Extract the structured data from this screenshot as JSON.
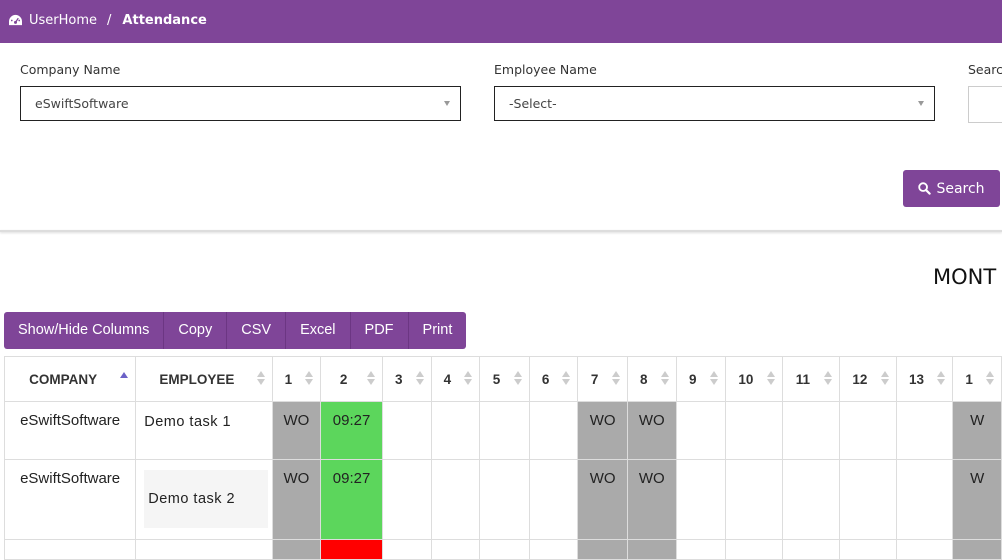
{
  "breadcrumb": {
    "home": "UserHome",
    "separator": "/",
    "current": "Attendance"
  },
  "filters": {
    "company_label": "Company Name",
    "company_value": "eSwiftSoftware",
    "employee_label": "Employee Name",
    "employee_value": "-Select-",
    "search_label": "Searc"
  },
  "search_button": "Search",
  "month_title": "MONT",
  "toolbar": [
    "Show/Hide Columns",
    "Copy",
    "CSV",
    "Excel",
    "PDF",
    "Print"
  ],
  "columns": [
    "COMPANY",
    "EMPLOYEE",
    "1",
    "2",
    "3",
    "4",
    "5",
    "6",
    "7",
    "8",
    "9",
    "10",
    "11",
    "12",
    "13",
    "1"
  ],
  "rows": [
    {
      "company": "eSwiftSoftware",
      "employee": "Demo task 1",
      "days": [
        "WO",
        "09:27",
        "",
        "",
        "",
        "",
        "WO",
        "WO",
        "",
        "",
        "",
        "",
        "",
        "W"
      ],
      "status": [
        "wo",
        "ok",
        "",
        "",
        "",
        "",
        "wo",
        "wo",
        "",
        "",
        "",
        "",
        "",
        "wo"
      ]
    },
    {
      "company": "eSwiftSoftware",
      "employee": "Demo task 2",
      "days": [
        "WO",
        "09:27",
        "",
        "",
        "",
        "",
        "WO",
        "WO",
        "",
        "",
        "",
        "",
        "",
        "W"
      ],
      "status": [
        "wo",
        "ok",
        "",
        "",
        "",
        "",
        "wo",
        "wo",
        "",
        "",
        "",
        "",
        "",
        "wo"
      ]
    },
    {
      "company": "",
      "employee": "",
      "days": [
        "",
        "",
        "",
        "",
        "",
        "",
        "",
        "",
        "",
        "",
        "",
        "",
        "",
        ""
      ],
      "status": [
        "wo",
        "red",
        "",
        "",
        "",
        "",
        "wo",
        "wo",
        "",
        "",
        "",
        "",
        "",
        "wo"
      ]
    }
  ],
  "colors": {
    "brand": "#7f4598",
    "weekoff": "#aaaaaa",
    "present": "#5cd65c",
    "absent": "#ff0000"
  }
}
